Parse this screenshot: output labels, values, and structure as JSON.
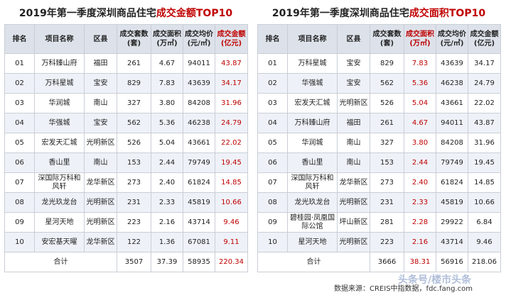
{
  "tables": [
    {
      "title": {
        "prefix": "2019年第一季度深圳商品住宅",
        "highlight": "成交金额TOP10"
      },
      "highlight_column": 6,
      "header": [
        "排名",
        "项目名称",
        "区县",
        "成交套数\n(套)",
        "成交面积\n(万㎡)",
        "成交均价\n(元/㎡)",
        "成交金额\n(亿元)"
      ],
      "rows": [
        [
          "01",
          "万科臻山府",
          "福田",
          "261",
          "4.67",
          "94011",
          "43.87"
        ],
        [
          "02",
          "万科星城",
          "宝安",
          "829",
          "7.83",
          "43639",
          "34.17"
        ],
        [
          "03",
          "华润城",
          "南山",
          "327",
          "3.80",
          "84208",
          "31.96"
        ],
        [
          "04",
          "华强城",
          "宝安",
          "562",
          "5.36",
          "46238",
          "24.79"
        ],
        [
          "05",
          "宏发天汇城",
          "光明新区",
          "526",
          "5.04",
          "43661",
          "22.02"
        ],
        [
          "06",
          "香山里",
          "南山",
          "153",
          "2.44",
          "79749",
          "19.45"
        ],
        [
          "07",
          "深国际万科和风轩",
          "龙华新区",
          "273",
          "2.40",
          "61824",
          "14.85"
        ],
        [
          "08",
          "龙光玖龙台",
          "光明新区",
          "231",
          "2.33",
          "45819",
          "10.66"
        ],
        [
          "09",
          "星河天地",
          "光明新区",
          "223",
          "2.16",
          "43714",
          "9.46"
        ],
        [
          "10",
          "安宏基天曜",
          "龙华新区",
          "122",
          "1.36",
          "67081",
          "9.11"
        ]
      ],
      "total": {
        "label": "合计",
        "values": [
          "3507",
          "37.39",
          "58935",
          "220.34"
        ]
      }
    },
    {
      "title": {
        "prefix": "2019年第一季度深圳商品住宅",
        "highlight": "成交面积TOP10"
      },
      "highlight_column": 4,
      "header": [
        "排名",
        "项目名称",
        "区县",
        "成交套数\n(套)",
        "成交面积\n(万㎡)",
        "成交均价\n(元/㎡)",
        "成交金额\n(亿元)"
      ],
      "rows": [
        [
          "01",
          "万科星城",
          "宝安",
          "829",
          "7.83",
          "43639",
          "34.17"
        ],
        [
          "02",
          "华强城",
          "宝安",
          "562",
          "5.36",
          "46238",
          "24.79"
        ],
        [
          "03",
          "宏发天汇城",
          "光明新区",
          "526",
          "5.04",
          "43661",
          "22.02"
        ],
        [
          "04",
          "万科臻山府",
          "福田",
          "261",
          "4.67",
          "94011",
          "43.87"
        ],
        [
          "05",
          "华润城",
          "南山",
          "327",
          "3.80",
          "84208",
          "31.96"
        ],
        [
          "06",
          "香山里",
          "南山",
          "153",
          "2.44",
          "79749",
          "19.45"
        ],
        [
          "07",
          "深国际万科和风轩",
          "龙华新区",
          "273",
          "2.40",
          "61824",
          "14.85"
        ],
        [
          "08",
          "龙光玖龙台",
          "光明新区",
          "231",
          "2.33",
          "45819",
          "10.66"
        ],
        [
          "09",
          "碧桂园·凤凰国际公馆",
          "坪山新区",
          "281",
          "2.28",
          "29922",
          "6.84"
        ],
        [
          "10",
          "星河天地",
          "光明新区",
          "223",
          "2.16",
          "43714",
          "9.46"
        ]
      ],
      "total": {
        "label": "合计",
        "values": [
          "3666",
          "38.31",
          "56916",
          "218.06"
        ]
      }
    }
  ],
  "footer": {
    "source": "数据来源：CREIS中指数据，fdc.fang.com",
    "watermark": "头条号/楼市头条"
  }
}
